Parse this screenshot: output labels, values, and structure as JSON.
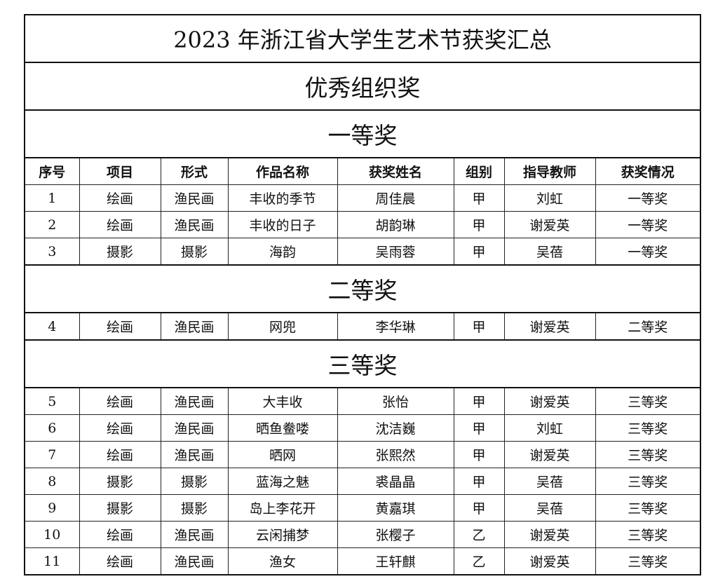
{
  "title": "2023 年浙江省大学生艺术节获奖汇总",
  "subtitle": "优秀组织奖",
  "columns": [
    "序号",
    "项目",
    "形式",
    "作品名称",
    "获奖姓名",
    "组别",
    "指导教师",
    "获奖情况"
  ],
  "sections": [
    {
      "heading": "一等奖",
      "rows": [
        [
          "1",
          "绘画",
          "渔民画",
          "丰收的季节",
          "周佳晨",
          "甲",
          "刘虹",
          "一等奖"
        ],
        [
          "2",
          "绘画",
          "渔民画",
          "丰收的日子",
          "胡韵琳",
          "甲",
          "谢爱英",
          "一等奖"
        ],
        [
          "3",
          "摄影",
          "摄影",
          "海韵",
          "吴雨蓉",
          "甲",
          "吴蓓",
          "一等奖"
        ]
      ]
    },
    {
      "heading": "二等奖",
      "rows": [
        [
          "4",
          "绘画",
          "渔民画",
          "网兜",
          "李华琳",
          "甲",
          "谢爱英",
          "二等奖"
        ]
      ]
    },
    {
      "heading": "三等奖",
      "rows": [
        [
          "5",
          "绘画",
          "渔民画",
          "大丰收",
          "张怡",
          "甲",
          "谢爱英",
          "三等奖"
        ],
        [
          "6",
          "绘画",
          "渔民画",
          "晒鱼鲞喽",
          "沈洁巍",
          "甲",
          "刘虹",
          "三等奖"
        ],
        [
          "7",
          "绘画",
          "渔民画",
          "晒网",
          "张熙然",
          "甲",
          "谢爱英",
          "三等奖"
        ],
        [
          "8",
          "摄影",
          "摄影",
          "蓝海之魅",
          "裘晶晶",
          "甲",
          "吴蓓",
          "三等奖"
        ],
        [
          "9",
          "摄影",
          "摄影",
          "岛上李花开",
          "黄嘉琪",
          "甲",
          "吴蓓",
          "三等奖"
        ],
        [
          "10",
          "绘画",
          "渔民画",
          "云闲捕梦",
          "张樱子",
          "乙",
          "谢爱英",
          "三等奖"
        ],
        [
          "11",
          "绘画",
          "渔民画",
          "渔女",
          "王轩麒",
          "乙",
          "谢爱英",
          "三等奖"
        ]
      ]
    }
  ]
}
